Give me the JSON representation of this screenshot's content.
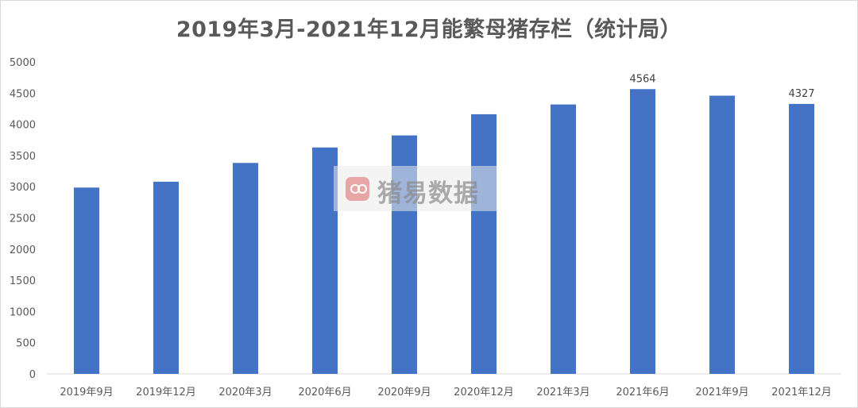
{
  "chart_data": {
    "type": "bar",
    "title": "2019年3月-2021年12月能繁母猪存栏（统计局）",
    "categories": [
      "2019年9月",
      "2019年12月",
      "2020年3月",
      "2020年6月",
      "2020年9月",
      "2020年12月",
      "2021年3月",
      "2021年6月",
      "2021年9月",
      "2021年12月"
    ],
    "values": [
      2986,
      3080,
      3381,
      3629,
      3822,
      4161,
      4318,
      4564,
      4459,
      4327
    ],
    "data_labels": [
      "",
      "",
      "",
      "",
      "",
      "",
      "",
      "4564",
      "",
      "4327"
    ],
    "yticks": [
      "0",
      "500",
      "1000",
      "1500",
      "2000",
      "2500",
      "3000",
      "3500",
      "4000",
      "4500",
      "5000"
    ],
    "ylim": [
      0,
      5000
    ],
    "grid": false,
    "legend": "none",
    "bar_color": "#4472c4"
  },
  "watermark": {
    "text": "猪易数据",
    "icon": "pig-logo-icon"
  }
}
